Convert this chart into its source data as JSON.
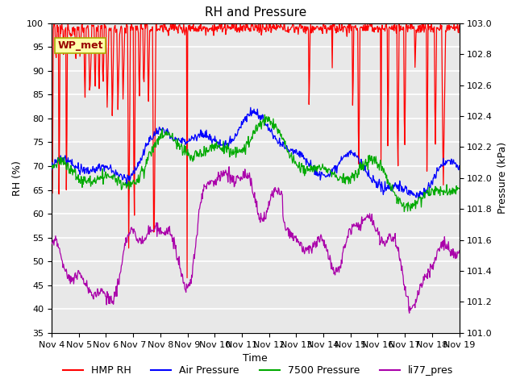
{
  "title": "RH and Pressure",
  "xlabel": "Time",
  "ylabel_left": "RH (%)",
  "ylabel_right": "Pressure (kPa)",
  "xlim": [
    0,
    15
  ],
  "ylim_left": [
    35,
    100
  ],
  "ylim_right": [
    101.0,
    103.0
  ],
  "xtick_labels": [
    "Nov 4",
    "Nov 5",
    "Nov 6",
    "Nov 7",
    "Nov 8",
    "Nov 9",
    "Nov 10",
    "Nov 11",
    "Nov 12",
    "Nov 13",
    "Nov 14",
    "Nov 15",
    "Nov 16",
    "Nov 17",
    "Nov 18",
    "Nov 19"
  ],
  "yticks_left": [
    35,
    40,
    45,
    50,
    55,
    60,
    65,
    70,
    75,
    80,
    85,
    90,
    95,
    100
  ],
  "yticks_right": [
    101.0,
    101.2,
    101.4,
    101.6,
    101.8,
    102.0,
    102.2,
    102.4,
    102.6,
    102.8,
    103.0
  ],
  "colors": {
    "HMP_RH": "#ff0000",
    "Air_Pressure": "#0000ff",
    "Pressure_7500": "#00aa00",
    "li77_pres": "#aa00aa"
  },
  "legend_labels": [
    "HMP RH",
    "Air Pressure",
    "7500 Pressure",
    "li77_pres"
  ],
  "wp_met_box_facecolor": "#ffffaa",
  "wp_met_box_edgecolor": "#aaaa00",
  "wp_met_text_color": "#990000",
  "background_color": "#ffffff",
  "plot_bg_color": "#e8e8e8",
  "grid_color": "#ffffff",
  "title_fontsize": 11,
  "label_fontsize": 9,
  "tick_fontsize": 8,
  "linewidth": 0.9
}
